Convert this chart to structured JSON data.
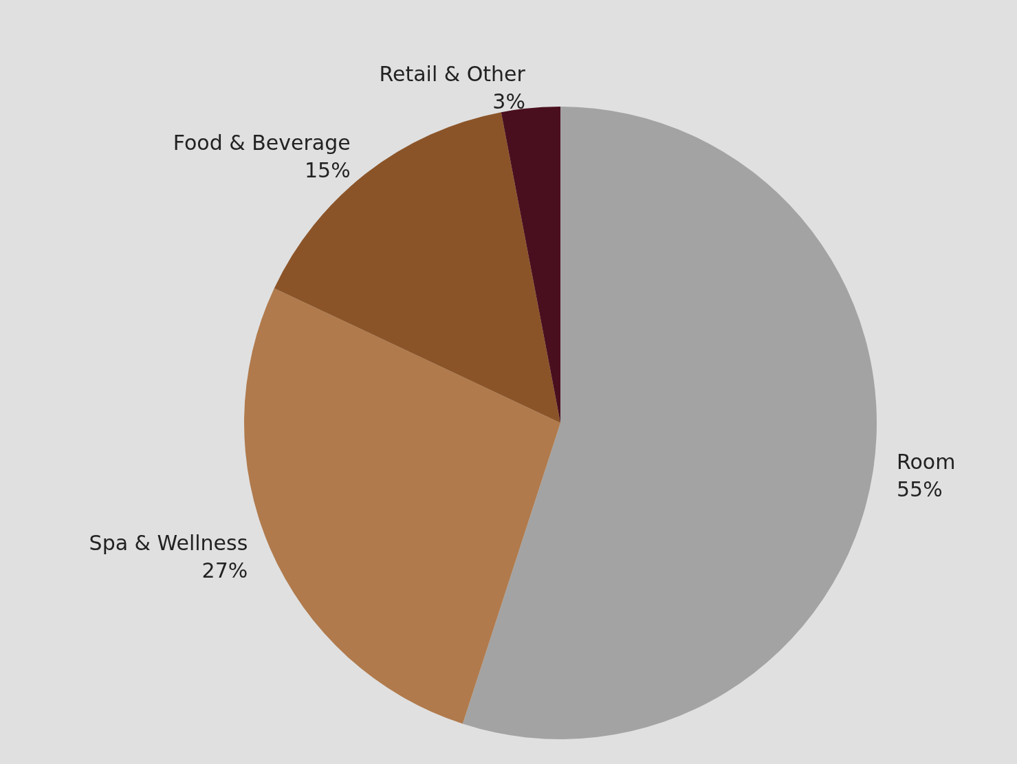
{
  "chart_data": {
    "type": "pie",
    "categories": [
      "Room",
      "Spa & Wellness",
      "Food & Beverage",
      "Retail & Other"
    ],
    "values": [
      55,
      27,
      15,
      3
    ],
    "value_labels": [
      "55%",
      "27%",
      "15%",
      "3%"
    ],
    "colors": [
      "#a3a3a3",
      "#b07a4c",
      "#8b5428",
      "#4a0f1e"
    ],
    "legend": false
  }
}
